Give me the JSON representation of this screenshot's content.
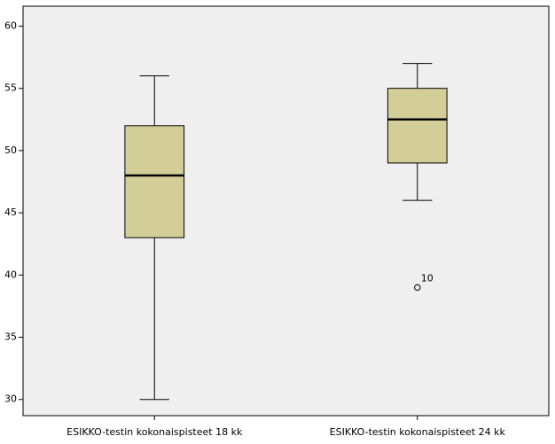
{
  "chart_data": {
    "type": "box",
    "categories": [
      "ESIKKO-testin kokonaispisteet 18 kk",
      "ESIKKO-testin kokonaispisteet 24 kk"
    ],
    "boxes": [
      {
        "min": 30,
        "q1": 43,
        "median": 48,
        "q3": 52,
        "max": 56
      },
      {
        "min": 46,
        "q1": 49,
        "median": 52.5,
        "q3": 55,
        "max": 57,
        "outliers": [
          {
            "value": 39,
            "label": "10"
          }
        ]
      }
    ],
    "color": "#d3ce97",
    "ylim": [
      28.7,
      61.6
    ],
    "yticks": [
      30,
      35,
      40,
      45,
      50,
      55,
      60
    ]
  }
}
